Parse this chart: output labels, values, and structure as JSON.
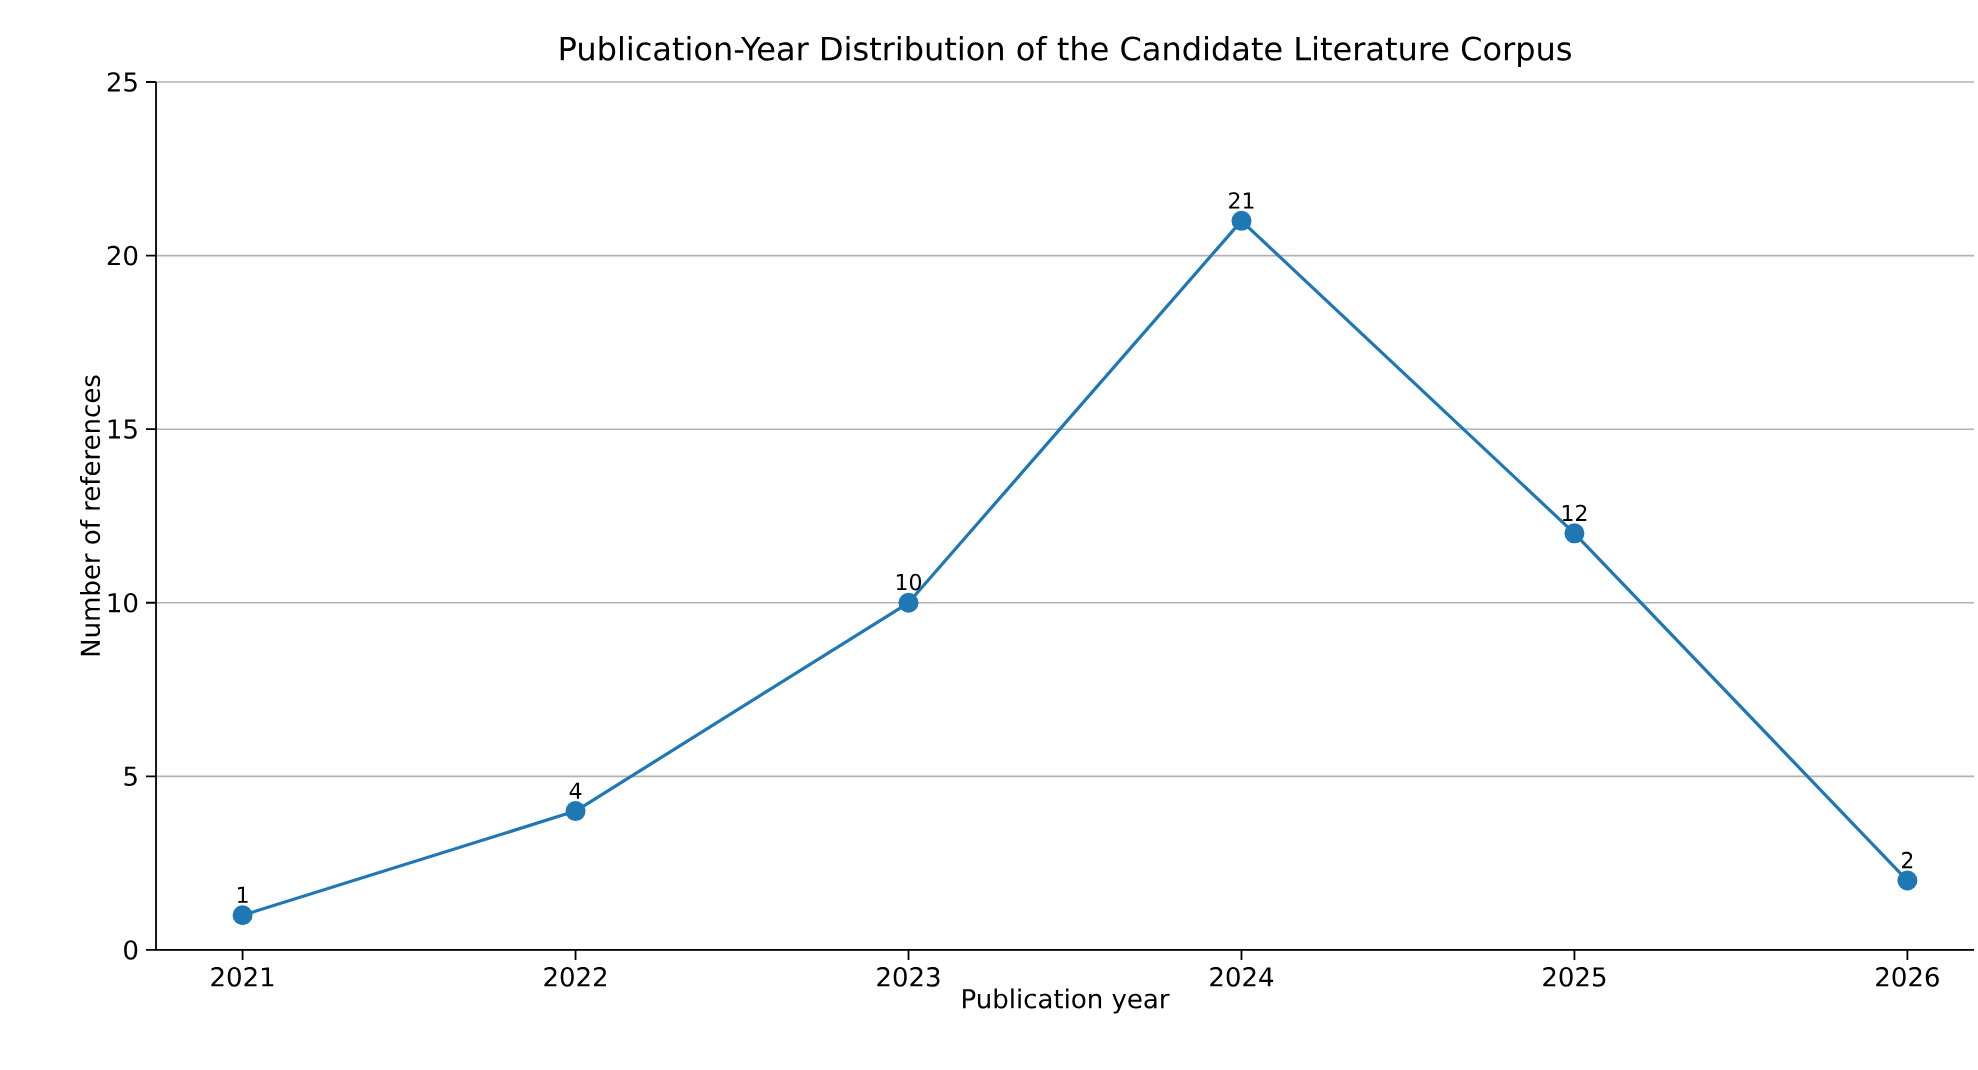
{
  "chart_data": {
    "type": "line",
    "title": "Publication-Year Distribution of the Candidate Literature Corpus",
    "xlabel": "Publication year",
    "ylabel": "Number of references",
    "x": [
      2021,
      2022,
      2023,
      2024,
      2025,
      2026
    ],
    "series": [
      {
        "color": "#1f77b4",
        "values": [
          1,
          4,
          10,
          21,
          12,
          2
        ]
      }
    ],
    "xlim": [
      2020.74,
      2026.2
    ],
    "xticks": [
      2021,
      2022,
      2023,
      2024,
      2025,
      2026
    ],
    "ylim": [
      0,
      25
    ],
    "yticks": [
      0,
      5,
      10,
      15,
      20,
      25
    ],
    "grid": "y",
    "marker": "circle",
    "line_style": "solid",
    "data_labels": true
  }
}
